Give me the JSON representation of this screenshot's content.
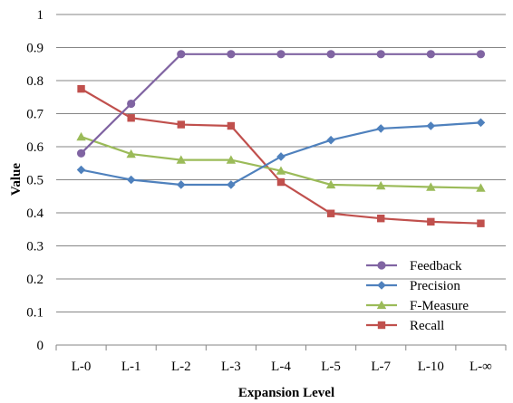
{
  "chart_data": {
    "type": "line",
    "title": "",
    "xlabel": "Expansion Level",
    "ylabel": "Value",
    "ylim": [
      0,
      1
    ],
    "yticks": [
      "0",
      "0.1",
      "0.2",
      "0.3",
      "0.4",
      "0.5",
      "0.6",
      "0.7",
      "0.8",
      "0.9",
      "1"
    ],
    "grid": "horizontal",
    "legend_position": "bottom-right",
    "categories": [
      "L-0",
      "L-1",
      "L-2",
      "L-3",
      "L-4",
      "L-5",
      "L-7",
      "L-10",
      "L-∞"
    ],
    "series": [
      {
        "name": "Feedback",
        "color": "#8064A2",
        "marker": "circle",
        "values": [
          0.58,
          0.73,
          0.88,
          0.88,
          0.88,
          0.88,
          0.88,
          0.88,
          0.88
        ]
      },
      {
        "name": "Precision",
        "color": "#4F81BD",
        "marker": "diamond",
        "values": [
          0.53,
          0.5,
          0.485,
          0.485,
          0.57,
          0.62,
          0.655,
          0.663,
          0.673
        ]
      },
      {
        "name": "F-Measure",
        "color": "#9BBB59",
        "marker": "triangle",
        "values": [
          0.63,
          0.578,
          0.56,
          0.56,
          0.527,
          0.485,
          0.482,
          0.478,
          0.475
        ]
      },
      {
        "name": "Recall",
        "color": "#C0504D",
        "marker": "square",
        "values": [
          0.775,
          0.687,
          0.667,
          0.663,
          0.493,
          0.398,
          0.383,
          0.373,
          0.368
        ]
      }
    ]
  }
}
